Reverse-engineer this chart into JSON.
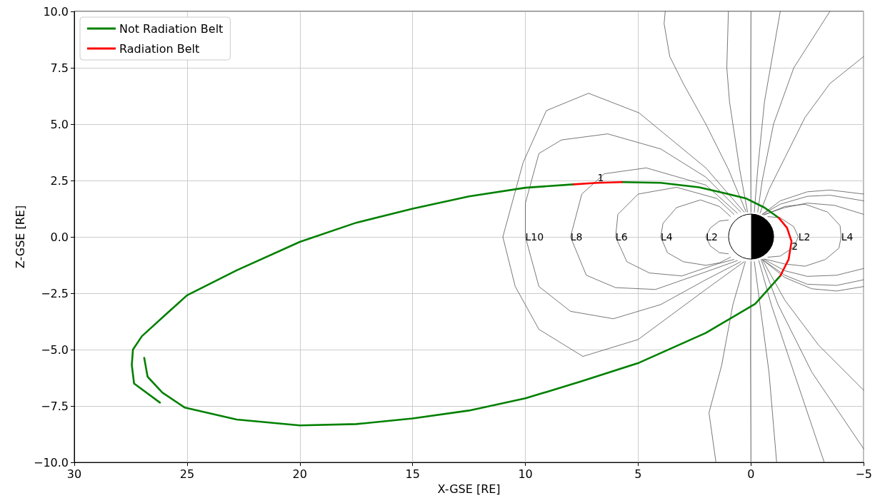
{
  "chart_data": {
    "type": "line",
    "xlabel": "X-GSE [RE]",
    "ylabel": "Z-GSE [RE]",
    "xlim": [
      30,
      -5
    ],
    "xticks": [
      30,
      25,
      20,
      15,
      10,
      5,
      0,
      {
        "value": -5,
        "label": "−5"
      }
    ],
    "ylim": [
      -10,
      10
    ],
    "yticks": [
      {
        "value": -10,
        "label": "−10.0"
      },
      {
        "value": -7.5,
        "label": "−7.5"
      },
      {
        "value": -5,
        "label": "−5.0"
      },
      {
        "value": -2.5,
        "label": "−2.5"
      },
      {
        "value": 0,
        "label": "0.0"
      },
      {
        "value": 2.5,
        "label": "2.5"
      },
      {
        "value": 5,
        "label": "5.0"
      },
      {
        "value": 7.5,
        "label": "7.5"
      },
      {
        "value": 10,
        "label": "10.0"
      }
    ],
    "grid": true,
    "legend": "top left",
    "annotations": [
      {
        "text": "1",
        "x": 6.8,
        "y": 2.4
      },
      {
        "text": "2",
        "x": -1.8,
        "y": -0.2
      },
      {
        "text": "L10",
        "x": 10,
        "y": 0
      },
      {
        "text": "L8",
        "x": 8,
        "y": 0
      },
      {
        "text": "L6",
        "x": 6,
        "y": 0
      },
      {
        "text": "L4",
        "x": 4,
        "y": 0
      },
      {
        "text": "L2",
        "x": 2,
        "y": 0
      },
      {
        "text": "L2",
        "x": -2.1,
        "y": 0
      },
      {
        "text": "L4",
        "x": -4.0,
        "y": 0
      }
    ],
    "series": [
      {
        "color": "#555555",
        "x": [
          0.3,
          2.0,
          4.96,
          7.2,
          9.07,
          10.1,
          11,
          10.45,
          9.4,
          7.45,
          5.0,
          2.0,
          0.3
        ],
        "values": [
          1.1,
          3.06,
          5.5,
          6.37,
          5.6,
          3.3,
          0,
          -2.2,
          -4.1,
          -5.3,
          -4.55,
          -2.33,
          -1.1
        ]
      },
      {
        "color": "#555555",
        "x": [
          0.45,
          2.0,
          4.0,
          6.35,
          8.4,
          9.4,
          10,
          10,
          9.4,
          8.0,
          6.1,
          4.0,
          2.0,
          0.45
        ],
        "values": [
          1.1,
          2.65,
          3.9,
          4.57,
          4.3,
          3.7,
          1.5,
          0,
          -2.2,
          -3.3,
          -3.63,
          -3.0,
          -1.9,
          -1.1
        ]
      },
      {
        "color": "#555555",
        "x": [
          0.6,
          2.0,
          4.64,
          6.5,
          7.5,
          8,
          7.3,
          6.0,
          4.23,
          2.0,
          0.6
        ],
        "values": [
          1.05,
          2.3,
          3.06,
          2.8,
          1.9,
          0,
          -1.7,
          -2.25,
          -2.33,
          -1.55,
          -1.05
        ]
      },
      {
        "color": "#555555",
        "x": [
          0.75,
          1.5,
          3.3,
          5,
          5.9,
          6,
          5.5,
          4.5,
          3.06,
          1.5,
          0.75
        ],
        "values": [
          1.0,
          1.7,
          2.2,
          1.9,
          1,
          0,
          -1.1,
          -1.6,
          -1.73,
          -1.2,
          -1.0
        ]
      },
      {
        "color": "#555555",
        "x": [
          0.9,
          1.4,
          2.24,
          3.3,
          3.9,
          4,
          3.7,
          3.0,
          2.0,
          1.4,
          0.9
        ],
        "values": [
          0.9,
          1.35,
          1.64,
          1.3,
          0.6,
          0,
          -0.7,
          -1.1,
          -1.26,
          -1.15,
          -0.9
        ]
      },
      {
        "color": "#555555",
        "x": [
          1.0,
          1.4,
          1.8,
          2,
          1.8,
          1.4,
          1.0
        ],
        "values": [
          0.75,
          0.7,
          0.4,
          0,
          -0.4,
          -0.7,
          -0.75
        ]
      },
      {
        "color": "#555555",
        "x": [
          -0.75,
          -1.3,
          -1.9,
          -2.1,
          -1.9,
          -1.3,
          -0.75
        ],
        "values": [
          0.9,
          0.85,
          0.45,
          0,
          -0.45,
          -0.85,
          -0.9
        ]
      },
      {
        "color": "#555555",
        "x": [
          -0.6,
          -1.5,
          -2.4,
          -3.4,
          -3.95,
          -4.0,
          -3.9,
          -3.3,
          -2.4,
          -1.5,
          -0.6
        ],
        "values": [
          0.98,
          1.35,
          1.45,
          1.1,
          0.5,
          0,
          -0.5,
          -1.0,
          -1.3,
          -1.2,
          -0.98
        ]
      },
      {
        "color": "#555555",
        "x": [
          -0.5,
          -1.3,
          -2.5,
          -3.5,
          -5
        ],
        "values": [
          1.0,
          1.6,
          2.0,
          2.08,
          1.9
        ]
      },
      {
        "color": "#555555",
        "x": [
          -0.5,
          -1.3,
          -2.5,
          -3.5,
          -5
        ],
        "values": [
          1.0,
          1.45,
          1.8,
          1.85,
          1.6
        ]
      },
      {
        "color": "#555555",
        "x": [
          -0.55,
          -1.5,
          -2.5,
          -3.7,
          -5
        ],
        "values": [
          0.98,
          1.3,
          1.5,
          1.4,
          1.0
        ]
      },
      {
        "color": "#555555",
        "x": [
          -0.55,
          -1.5,
          -2.5,
          -3.8,
          -5
        ],
        "values": [
          -0.98,
          -1.5,
          -1.75,
          -1.7,
          -1.4
        ]
      },
      {
        "color": "#555555",
        "x": [
          -0.5,
          -1.5,
          -2.5,
          -3.8,
          -5
        ],
        "values": [
          -1.0,
          -1.7,
          -2.1,
          -2.15,
          -1.9
        ]
      },
      {
        "color": "#555555",
        "x": [
          -0.5,
          -1.5,
          -2.7,
          -3.8,
          -5
        ],
        "values": [
          -1.0,
          -1.8,
          -2.3,
          -2.4,
          -2.2
        ]
      },
      {
        "color": "#555555",
        "x": [
          -0.4,
          -0.8,
          -1.5,
          -2.4,
          -3.5,
          -5
        ],
        "values": [
          1.05,
          2.1,
          3.5,
          5.3,
          6.8,
          8.0
        ]
      },
      {
        "color": "#555555",
        "x": [
          -0.3,
          -0.5,
          -1.0,
          -1.9,
          -3.5
        ],
        "values": [
          1.1,
          2.5,
          5.0,
          7.5,
          10
        ]
      },
      {
        "color": "#555555",
        "x": [
          -0.15,
          -0.3,
          -0.6,
          -1.3
        ],
        "values": [
          1.1,
          3,
          6,
          10
        ]
      },
      {
        "color": "#555555",
        "x": [
          0,
          0.02,
          0
        ],
        "values": [
          1.1,
          5,
          10
        ]
      },
      {
        "color": "#555555",
        "x": [
          0,
          0.02,
          0
        ],
        "values": [
          -1.1,
          -5,
          -10
        ]
      },
      {
        "color": "#555555",
        "x": [
          0.15,
          0.5,
          0.95,
          1.07,
          1.0
        ],
        "values": [
          1.1,
          3,
          6,
          7.5,
          10
        ]
      },
      {
        "color": "#555555",
        "x": [
          0.22,
          1.0,
          2.0,
          3.0,
          3.6,
          3.85,
          3.8
        ],
        "values": [
          1.12,
          3,
          5.0,
          6.8,
          8,
          9.46,
          10
        ]
      },
      {
        "color": "#555555",
        "x": [
          0.25,
          0.8,
          1.3,
          1.86,
          1.55
        ],
        "values": [
          -1.1,
          -3,
          -5.7,
          -7.8,
          -10
        ]
      },
      {
        "color": "#555555",
        "x": [
          -0.15,
          -0.4,
          -0.8,
          -1.14
        ],
        "values": [
          -1.1,
          -3,
          -6,
          -10
        ]
      },
      {
        "color": "#555555",
        "x": [
          -0.35,
          -0.9,
          -1.9,
          -3.25
        ],
        "values": [
          -1.05,
          -3,
          -6,
          -10
        ]
      },
      {
        "color": "#555555",
        "x": [
          -0.45,
          -1.2,
          -2.7,
          -5
        ],
        "values": [
          -1.0,
          -3,
          -6,
          -9.4
        ]
      },
      {
        "color": "#555555",
        "x": [
          -0.5,
          -1.5,
          -3,
          -5
        ],
        "values": [
          -1.0,
          -2.8,
          -4.8,
          -6.8
        ]
      },
      {
        "name": "Not Radiation Belt",
        "color": "#008000",
        "x": [
          26.2,
          27.35,
          27.45,
          27.4,
          27.0,
          25.9,
          25.0,
          22.8,
          20.0,
          17.5,
          15,
          12.5,
          10,
          7.86
        ],
        "values": [
          -7.35,
          -6.5,
          -5.68,
          -5.0,
          -4.4,
          -3.4,
          -2.59,
          -1.48,
          -0.22,
          0.63,
          1.25,
          1.8,
          2.18,
          2.33
        ]
      },
      {
        "color": "#008000",
        "x": [
          5.72,
          4,
          2.3,
          1.2,
          0.2,
          -0.6,
          -1.23
        ],
        "values": [
          2.43,
          2.4,
          2.2,
          1.95,
          1.7,
          1.3,
          0.85
        ]
      },
      {
        "color": "#008000",
        "x": [
          -1.3,
          -0.19,
          2.0,
          4.96,
          7.5,
          10,
          12.5,
          15,
          17.5,
          20,
          22.8,
          25.1,
          26.1,
          26.75,
          26.9
        ],
        "values": [
          -1.73,
          -2.97,
          -4.26,
          -5.58,
          -6.4,
          -7.16,
          -7.7,
          -8.05,
          -8.3,
          -8.36,
          -8.1,
          -7.57,
          -6.9,
          -6.2,
          -5.36
        ]
      },
      {
        "name": "Radiation Belt",
        "color": "#ff0000",
        "x": [
          7.86,
          6.8,
          5.72
        ],
        "values": [
          2.33,
          2.4,
          2.43
        ]
      },
      {
        "color": "#ff0000",
        "x": [
          -1.23,
          -1.6,
          -1.8,
          -1.67,
          -1.3
        ],
        "values": [
          0.85,
          0.4,
          -0.2,
          -1.0,
          -1.73
        ]
      }
    ]
  }
}
